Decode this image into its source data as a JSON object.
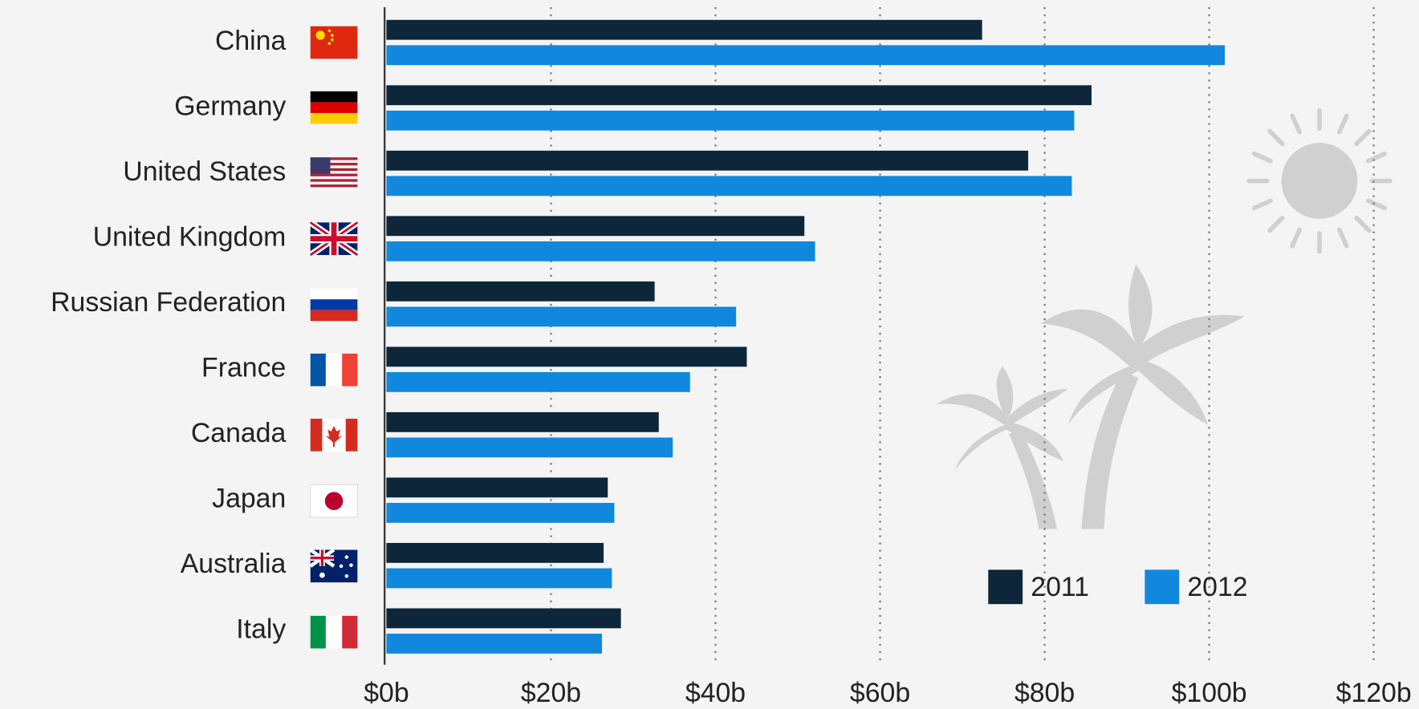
{
  "chart_data": {
    "type": "hbar",
    "categories": [
      "China",
      "Germany",
      "United States",
      "United Kingdom",
      "Russian Federation",
      "France",
      "Canada",
      "Japan",
      "Australia",
      "Italy"
    ],
    "series": [
      {
        "name": "2011",
        "color": "#0d2639",
        "values": [
          72.4,
          85.7,
          78.0,
          50.8,
          32.6,
          43.8,
          33.1,
          26.9,
          26.4,
          28.5
        ]
      },
      {
        "name": "2012",
        "color": "#1188dd",
        "values": [
          101.9,
          83.6,
          83.3,
          52.1,
          42.5,
          36.9,
          34.8,
          27.7,
          27.4,
          26.2
        ]
      }
    ],
    "xlim": [
      0,
      120
    ],
    "xticks": [
      {
        "value": 0,
        "label": "$0b"
      },
      {
        "value": 20,
        "label": "$20b"
      },
      {
        "value": 40,
        "label": "$40b"
      },
      {
        "value": 60,
        "label": "$60b"
      },
      {
        "value": 80,
        "label": "$80b"
      },
      {
        "value": 100,
        "label": "$100b"
      },
      {
        "value": 120,
        "label": "$120b"
      }
    ],
    "grid": true
  }
}
